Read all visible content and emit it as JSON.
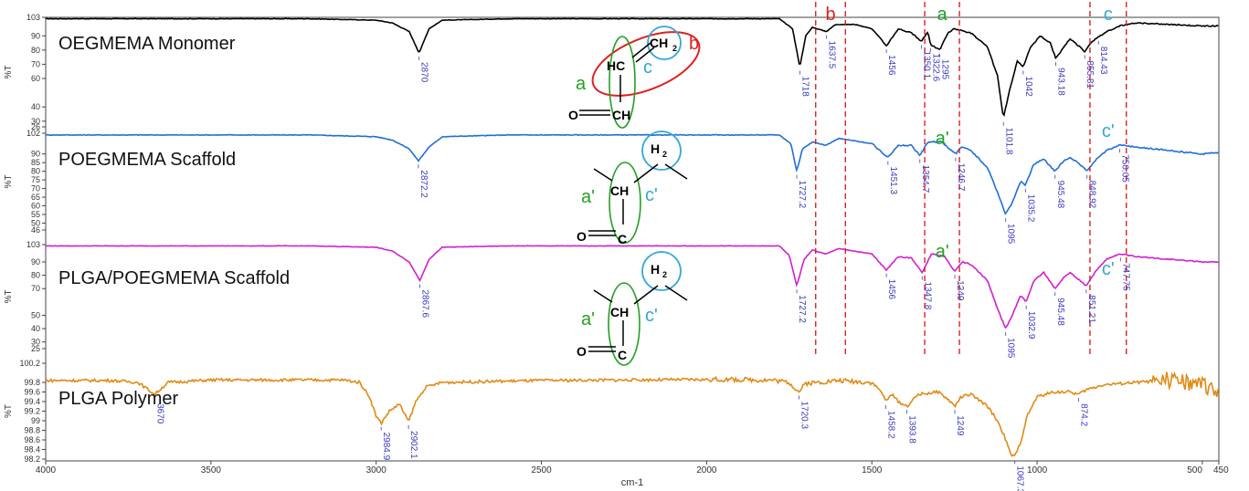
{
  "chart_data": {
    "type": "line",
    "xlabel": "cm-1",
    "ylabel": "%T",
    "xlim": [
      4000,
      450
    ],
    "x_ticks": [
      4000,
      3500,
      3000,
      2500,
      2000,
      1500,
      1000,
      500,
      450
    ],
    "band_markers": [
      {
        "label": "b",
        "color": "#e02020",
        "x": [
          1670,
          1580
        ]
      },
      {
        "label": "a",
        "color": "#22a022",
        "x": [
          1340,
          1235
        ]
      },
      {
        "label": "c",
        "color": "#2fa8d8",
        "x": [
          840,
          730
        ]
      }
    ],
    "series": [
      {
        "name": "OEGMEMA Monomer",
        "color": "#000000",
        "ylim": [
          26,
          103
        ],
        "y_ticks": [
          103,
          90,
          80,
          70,
          60,
          40,
          30,
          26
        ],
        "points": [
          [
            4000,
            102
          ],
          [
            3600,
            102
          ],
          [
            3200,
            102
          ],
          [
            3000,
            101
          ],
          [
            2950,
            99
          ],
          [
            2900,
            93
          ],
          [
            2870,
            78
          ],
          [
            2840,
            95
          ],
          [
            2800,
            101
          ],
          [
            2600,
            102
          ],
          [
            2000,
            102
          ],
          [
            1780,
            102
          ],
          [
            1740,
            95
          ],
          [
            1718,
            68
          ],
          [
            1700,
            90
          ],
          [
            1680,
            96
          ],
          [
            1637.5,
            93
          ],
          [
            1610,
            98
          ],
          [
            1550,
            98
          ],
          [
            1500,
            95
          ],
          [
            1456,
            83
          ],
          [
            1420,
            95
          ],
          [
            1380,
            92
          ],
          [
            1350.1,
            86
          ],
          [
            1330,
            93
          ],
          [
            1322.6,
            84
          ],
          [
            1295,
            80
          ],
          [
            1270,
            92
          ],
          [
            1250,
            95
          ],
          [
            1200,
            92
          ],
          [
            1150,
            82
          ],
          [
            1120,
            62
          ],
          [
            1101.8,
            32
          ],
          [
            1085,
            50
          ],
          [
            1060,
            72
          ],
          [
            1042,
            68
          ],
          [
            1020,
            82
          ],
          [
            990,
            90
          ],
          [
            960,
            85
          ],
          [
            943.18,
            74
          ],
          [
            920,
            82
          ],
          [
            900,
            88
          ],
          [
            870,
            82
          ],
          [
            855.81,
            79
          ],
          [
            835,
            86
          ],
          [
            814.43,
            89
          ],
          [
            790,
            93
          ],
          [
            750,
            97
          ],
          [
            700,
            99
          ],
          [
            600,
            98
          ],
          [
            500,
            97
          ],
          [
            450,
            97
          ]
        ],
        "peaks": [
          2870,
          1718,
          1637.5,
          1456,
          1350.1,
          1322.6,
          1295,
          1101.8,
          1042,
          943.18,
          855.81,
          814.43
        ]
      },
      {
        "name": "POEGMEMA Scaffold",
        "color": "#1f6fd6",
        "ylim": [
          46,
          102
        ],
        "y_ticks": [
          102,
          90,
          85,
          80,
          75,
          70,
          65,
          60,
          55,
          50,
          46
        ],
        "points": [
          [
            4000,
            101
          ],
          [
            3600,
            101
          ],
          [
            3200,
            101
          ],
          [
            3000,
            100
          ],
          [
            2950,
            98
          ],
          [
            2900,
            93
          ],
          [
            2872.2,
            86
          ],
          [
            2840,
            94
          ],
          [
            2800,
            100
          ],
          [
            2600,
            101
          ],
          [
            2000,
            101
          ],
          [
            1780,
            101
          ],
          [
            1745,
            96
          ],
          [
            1727.2,
            80
          ],
          [
            1710,
            93
          ],
          [
            1680,
            97
          ],
          [
            1640,
            95
          ],
          [
            1600,
            99
          ],
          [
            1500,
            96
          ],
          [
            1451.3,
            88
          ],
          [
            1420,
            95
          ],
          [
            1380,
            95
          ],
          [
            1354.7,
            89
          ],
          [
            1330,
            97
          ],
          [
            1290,
            97
          ],
          [
            1246.7,
            90
          ],
          [
            1230,
            94
          ],
          [
            1200,
            92
          ],
          [
            1150,
            82
          ],
          [
            1120,
            68
          ],
          [
            1095,
            55
          ],
          [
            1075,
            62
          ],
          [
            1050,
            74
          ],
          [
            1035.2,
            72
          ],
          [
            1010,
            84
          ],
          [
            980,
            87
          ],
          [
            945.48,
            80
          ],
          [
            920,
            86
          ],
          [
            900,
            88
          ],
          [
            870,
            84
          ],
          [
            848.92,
            80
          ],
          [
            820,
            87
          ],
          [
            790,
            92
          ],
          [
            750.05,
            95
          ],
          [
            700,
            94
          ],
          [
            600,
            92
          ],
          [
            500,
            90
          ],
          [
            450,
            91
          ]
        ],
        "peaks": [
          2872.2,
          1727.2,
          1451.3,
          1354.7,
          1246.7,
          1095,
          1035.2,
          945.48,
          848.92,
          750.05
        ]
      },
      {
        "name": "PLGA/POEGMEMA Scaffold",
        "color": "#d020d0",
        "ylim": [
          25,
          103
        ],
        "y_ticks": [
          103,
          90,
          80,
          70,
          50,
          40,
          30,
          25
        ],
        "points": [
          [
            4000,
            102
          ],
          [
            3600,
            102
          ],
          [
            3200,
            102
          ],
          [
            3000,
            101
          ],
          [
            2950,
            98
          ],
          [
            2900,
            90
          ],
          [
            2867.6,
            76
          ],
          [
            2840,
            92
          ],
          [
            2800,
            101
          ],
          [
            2600,
            102
          ],
          [
            2000,
            102
          ],
          [
            1780,
            102
          ],
          [
            1750,
            95
          ],
          [
            1727.2,
            72
          ],
          [
            1705,
            92
          ],
          [
            1680,
            99
          ],
          [
            1640,
            96
          ],
          [
            1600,
            100
          ],
          [
            1500,
            96
          ],
          [
            1456,
            84
          ],
          [
            1420,
            94
          ],
          [
            1380,
            93
          ],
          [
            1347.8,
            82
          ],
          [
            1320,
            96
          ],
          [
            1280,
            94
          ],
          [
            1249,
            83
          ],
          [
            1225,
            90
          ],
          [
            1200,
            88
          ],
          [
            1150,
            76
          ],
          [
            1120,
            55
          ],
          [
            1095,
            40
          ],
          [
            1075,
            50
          ],
          [
            1050,
            65
          ],
          [
            1032.9,
            60
          ],
          [
            1010,
            76
          ],
          [
            980,
            82
          ],
          [
            945.48,
            70
          ],
          [
            920,
            78
          ],
          [
            900,
            82
          ],
          [
            870,
            76
          ],
          [
            851.21,
            72
          ],
          [
            820,
            84
          ],
          [
            790,
            92
          ],
          [
            747.75,
            96
          ],
          [
            700,
            94
          ],
          [
            600,
            92
          ],
          [
            500,
            90
          ],
          [
            450,
            90
          ]
        ],
        "peaks": [
          2867.6,
          1727.2,
          1456,
          1347.8,
          1249,
          1095,
          1032.9,
          945.48,
          851.21,
          747.75
        ]
      },
      {
        "name": "PLGA Polymer",
        "color": "#e08a14",
        "ylim": [
          98.2,
          100.2
        ],
        "y_ticks": [
          100.2,
          99.8,
          99.6,
          99.4,
          99.2,
          99.0,
          98.8,
          98.6,
          98.4,
          98.2
        ],
        "points": [
          [
            4000,
            99.84
          ],
          [
            3800,
            99.84
          ],
          [
            3720,
            99.8
          ],
          [
            3670,
            99.55
          ],
          [
            3630,
            99.8
          ],
          [
            3500,
            99.85
          ],
          [
            3100,
            99.85
          ],
          [
            3050,
            99.8
          ],
          [
            3020,
            99.5
          ],
          [
            3000,
            99.1
          ],
          [
            2984.9,
            98.95
          ],
          [
            2960,
            99.2
          ],
          [
            2930,
            99.35
          ],
          [
            2902.1,
            98.98
          ],
          [
            2880,
            99.4
          ],
          [
            2850,
            99.7
          ],
          [
            2800,
            99.8
          ],
          [
            2500,
            99.84
          ],
          [
            2000,
            99.86
          ],
          [
            1800,
            99.85
          ],
          [
            1750,
            99.8
          ],
          [
            1720.3,
            99.6
          ],
          [
            1700,
            99.78
          ],
          [
            1600,
            99.84
          ],
          [
            1500,
            99.8
          ],
          [
            1470,
            99.6
          ],
          [
            1458.2,
            99.4
          ],
          [
            1440,
            99.55
          ],
          [
            1420,
            99.4
          ],
          [
            1393.8,
            99.3
          ],
          [
            1360,
            99.55
          ],
          [
            1300,
            99.6
          ],
          [
            1270,
            99.45
          ],
          [
            1249,
            99.3
          ],
          [
            1230,
            99.5
          ],
          [
            1200,
            99.55
          ],
          [
            1150,
            99.3
          ],
          [
            1120,
            99.0
          ],
          [
            1100,
            98.7
          ],
          [
            1080,
            98.3
          ],
          [
            1067.3,
            98.25
          ],
          [
            1050,
            98.55
          ],
          [
            1030,
            99.1
          ],
          [
            1000,
            99.5
          ],
          [
            950,
            99.6
          ],
          [
            900,
            99.6
          ],
          [
            874.2,
            99.55
          ],
          [
            850,
            99.65
          ],
          [
            800,
            99.75
          ],
          [
            700,
            99.8
          ],
          [
            600,
            99.85
          ],
          [
            550,
            99.8
          ],
          [
            500,
            99.75
          ],
          [
            450,
            99.65
          ]
        ],
        "peaks": [
          3670,
          2984.9,
          2902.1,
          1720.3,
          1458.2,
          1393.8,
          1249,
          1067.3,
          874.2
        ]
      }
    ]
  }
}
